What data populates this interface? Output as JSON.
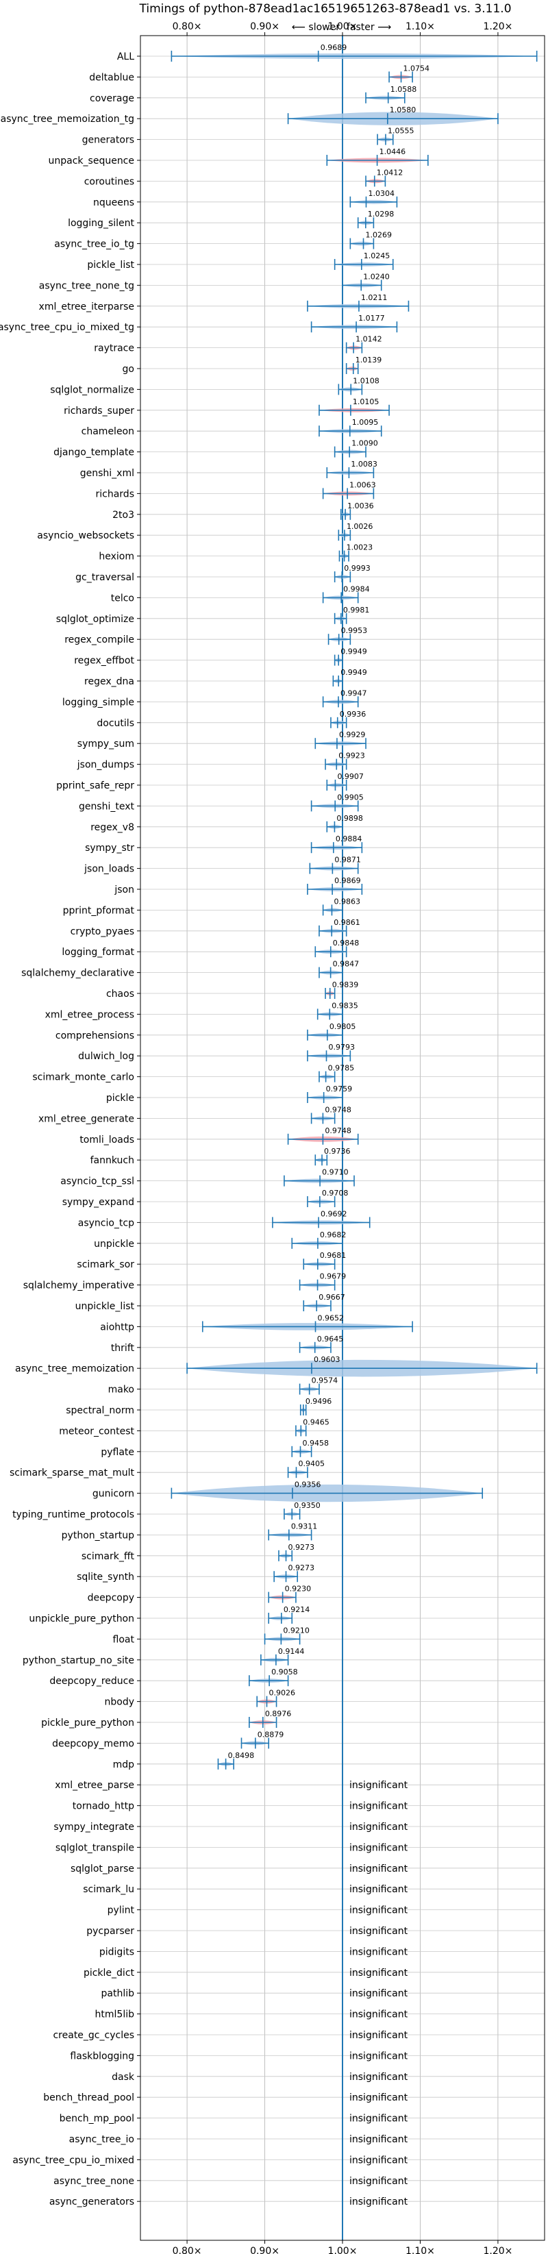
{
  "chart_data": {
    "type": "violin",
    "title": "Timings of python-878ead1ac16519651263-878ead1 vs. 3.11.0",
    "xlabel": "",
    "ylabel": "",
    "xlim": [
      0.74,
      1.26
    ],
    "xticks": [
      0.8,
      0.9,
      1.0,
      1.1,
      1.2
    ],
    "xtick_labels": [
      "0.80×",
      "0.90×",
      "1.00×",
      "1.10×",
      "1.20×"
    ],
    "reference_x": 1.0,
    "direction_labels": {
      "slower": "⟵ slower",
      "faster": "faster ⟶"
    },
    "grid": true,
    "insignificant_label": "insignificant",
    "benchmarks": [
      {
        "name": "ALL",
        "value": 0.9689,
        "label": "0.9689",
        "min": 0.78,
        "max": 1.25,
        "width": 0.045,
        "color": "blue"
      },
      {
        "name": "deltablue",
        "value": 1.0754,
        "label": "1.0754",
        "min": 1.06,
        "max": 1.09,
        "width": 0.015,
        "color": "red"
      },
      {
        "name": "coverage",
        "value": 1.0588,
        "label": "1.0588",
        "min": 1.03,
        "max": 1.08,
        "width": 0.018,
        "color": "blue"
      },
      {
        "name": "async_tree_memoization_tg",
        "value": 1.058,
        "label": "1.0580",
        "min": 0.93,
        "max": 1.2,
        "width": 0.11,
        "color": "blue"
      },
      {
        "name": "generators",
        "value": 1.0555,
        "label": "1.0555",
        "min": 1.045,
        "max": 1.065,
        "width": 0.01,
        "color": "blue"
      },
      {
        "name": "unpack_sequence",
        "value": 1.0446,
        "label": "1.0446",
        "min": 0.98,
        "max": 1.11,
        "width": 0.04,
        "color": "red"
      },
      {
        "name": "coroutines",
        "value": 1.0412,
        "label": "1.0412",
        "min": 1.03,
        "max": 1.055,
        "width": 0.012,
        "color": "red"
      },
      {
        "name": "nqueens",
        "value": 1.0304,
        "label": "1.0304",
        "min": 1.01,
        "max": 1.07,
        "width": 0.02,
        "color": "blue"
      },
      {
        "name": "logging_silent",
        "value": 1.0298,
        "label": "1.0298",
        "min": 1.02,
        "max": 1.04,
        "width": 0.008,
        "color": "blue"
      },
      {
        "name": "async_tree_io_tg",
        "value": 1.0269,
        "label": "1.0269",
        "min": 1.01,
        "max": 1.04,
        "width": 0.015,
        "color": "blue"
      },
      {
        "name": "pickle_list",
        "value": 1.0245,
        "label": "1.0245",
        "min": 0.99,
        "max": 1.065,
        "width": 0.02,
        "color": "blue"
      },
      {
        "name": "async_tree_none_tg",
        "value": 1.024,
        "label": "1.0240",
        "min": 1.0,
        "max": 1.05,
        "width": 0.025,
        "color": "blue"
      },
      {
        "name": "xml_etree_iterparse",
        "value": 1.0211,
        "label": "1.0211",
        "min": 0.955,
        "max": 1.085,
        "width": 0.035,
        "color": "blue"
      },
      {
        "name": "async_tree_cpu_io_mixed_tg",
        "value": 1.0177,
        "label": "1.0177",
        "min": 0.96,
        "max": 1.07,
        "width": 0.03,
        "color": "blue"
      },
      {
        "name": "raytrace",
        "value": 1.0142,
        "label": "1.0142",
        "min": 1.005,
        "max": 1.025,
        "width": 0.008,
        "color": "red"
      },
      {
        "name": "go",
        "value": 1.0139,
        "label": "1.0139",
        "min": 1.005,
        "max": 1.02,
        "width": 0.008,
        "color": "red"
      },
      {
        "name": "sqlglot_normalize",
        "value": 1.0108,
        "label": "1.0108",
        "min": 0.995,
        "max": 1.025,
        "width": 0.01,
        "color": "blue"
      },
      {
        "name": "richards_super",
        "value": 1.0105,
        "label": "1.0105",
        "min": 0.97,
        "max": 1.06,
        "width": 0.03,
        "color": "red"
      },
      {
        "name": "chameleon",
        "value": 1.0095,
        "label": "1.0095",
        "min": 0.97,
        "max": 1.05,
        "width": 0.02,
        "color": "blue"
      },
      {
        "name": "django_template",
        "value": 1.009,
        "label": "1.0090",
        "min": 0.99,
        "max": 1.03,
        "width": 0.012,
        "color": "blue"
      },
      {
        "name": "genshi_xml",
        "value": 1.0083,
        "label": "1.0083",
        "min": 0.98,
        "max": 1.04,
        "width": 0.015,
        "color": "blue"
      },
      {
        "name": "richards",
        "value": 1.0063,
        "label": "1.0063",
        "min": 0.975,
        "max": 1.04,
        "width": 0.03,
        "color": "red"
      },
      {
        "name": "2to3",
        "value": 1.0036,
        "label": "1.0036",
        "min": 0.998,
        "max": 1.01,
        "width": 0.006,
        "color": "blue"
      },
      {
        "name": "asyncio_websockets",
        "value": 1.0026,
        "label": "1.0026",
        "min": 0.995,
        "max": 1.01,
        "width": 0.006,
        "color": "blue"
      },
      {
        "name": "hexiom",
        "value": 1.0023,
        "label": "1.0023",
        "min": 0.996,
        "max": 1.008,
        "width": 0.005,
        "color": "blue"
      },
      {
        "name": "gc_traversal",
        "value": 0.9993,
        "label": "0.9993",
        "min": 0.99,
        "max": 1.01,
        "width": 0.006,
        "color": "blue"
      },
      {
        "name": "telco",
        "value": 0.9984,
        "label": "0.9984",
        "min": 0.975,
        "max": 1.02,
        "width": 0.012,
        "color": "blue"
      },
      {
        "name": "sqlglot_optimize",
        "value": 0.9981,
        "label": "0.9981",
        "min": 0.99,
        "max": 1.005,
        "width": 0.006,
        "color": "blue"
      },
      {
        "name": "regex_compile",
        "value": 0.9953,
        "label": "0.9953",
        "min": 0.982,
        "max": 1.01,
        "width": 0.008,
        "color": "blue"
      },
      {
        "name": "regex_effbot",
        "value": 0.9949,
        "label": "0.9949",
        "min": 0.99,
        "max": 1.0,
        "width": 0.005,
        "color": "blue"
      },
      {
        "name": "regex_dna",
        "value": 0.9949,
        "label": "0.9949",
        "min": 0.988,
        "max": 1.0,
        "width": 0.005,
        "color": "blue"
      },
      {
        "name": "logging_simple",
        "value": 0.9947,
        "label": "0.9947",
        "min": 0.975,
        "max": 1.02,
        "width": 0.015,
        "color": "blue"
      },
      {
        "name": "docutils",
        "value": 0.9936,
        "label": "0.9936",
        "min": 0.985,
        "max": 1.005,
        "width": 0.006,
        "color": "blue"
      },
      {
        "name": "sympy_sum",
        "value": 0.9929,
        "label": "0.9929",
        "min": 0.965,
        "max": 1.03,
        "width": 0.02,
        "color": "blue"
      },
      {
        "name": "json_dumps",
        "value": 0.9923,
        "label": "0.9923",
        "min": 0.978,
        "max": 1.005,
        "width": 0.008,
        "color": "blue"
      },
      {
        "name": "pprint_safe_repr",
        "value": 0.9907,
        "label": "0.9907",
        "min": 0.98,
        "max": 1.005,
        "width": 0.006,
        "color": "blue"
      },
      {
        "name": "genshi_text",
        "value": 0.9905,
        "label": "0.9905",
        "min": 0.96,
        "max": 1.02,
        "width": 0.02,
        "color": "blue"
      },
      {
        "name": "regex_v8",
        "value": 0.9898,
        "label": "0.9898",
        "min": 0.98,
        "max": 1.0,
        "width": 0.005,
        "color": "blue"
      },
      {
        "name": "sympy_str",
        "value": 0.9884,
        "label": "0.9884",
        "min": 0.96,
        "max": 1.025,
        "width": 0.02,
        "color": "blue"
      },
      {
        "name": "json_loads",
        "value": 0.9871,
        "label": "0.9871",
        "min": 0.958,
        "max": 1.02,
        "width": 0.015,
        "color": "blue"
      },
      {
        "name": "json",
        "value": 0.9869,
        "label": "0.9869",
        "min": 0.955,
        "max": 1.025,
        "width": 0.02,
        "color": "blue"
      },
      {
        "name": "pprint_pformat",
        "value": 0.9863,
        "label": "0.9863",
        "min": 0.975,
        "max": 1.0,
        "width": 0.006,
        "color": "blue"
      },
      {
        "name": "crypto_pyaes",
        "value": 0.9861,
        "label": "0.9861",
        "min": 0.97,
        "max": 1.005,
        "width": 0.008,
        "color": "blue"
      },
      {
        "name": "logging_format",
        "value": 0.9848,
        "label": "0.9848",
        "min": 0.965,
        "max": 1.005,
        "width": 0.012,
        "color": "blue"
      },
      {
        "name": "sqlalchemy_declarative",
        "value": 0.9847,
        "label": "0.9847",
        "min": 0.97,
        "max": 1.0,
        "width": 0.008,
        "color": "blue"
      },
      {
        "name": "chaos",
        "value": 0.9839,
        "label": "0.9839",
        "min": 0.978,
        "max": 0.99,
        "width": 0.006,
        "color": "red"
      },
      {
        "name": "xml_etree_process",
        "value": 0.9835,
        "label": "0.9835",
        "min": 0.968,
        "max": 1.0,
        "width": 0.008,
        "color": "blue"
      },
      {
        "name": "comprehensions",
        "value": 0.9805,
        "label": "0.9805",
        "min": 0.955,
        "max": 1.0,
        "width": 0.012,
        "color": "blue"
      },
      {
        "name": "dulwich_log",
        "value": 0.9793,
        "label": "0.9793",
        "min": 0.955,
        "max": 1.01,
        "width": 0.015,
        "color": "blue"
      },
      {
        "name": "scimark_monte_carlo",
        "value": 0.9785,
        "label": "0.9785",
        "min": 0.97,
        "max": 0.99,
        "width": 0.006,
        "color": "blue"
      },
      {
        "name": "pickle",
        "value": 0.9759,
        "label": "0.9759",
        "min": 0.955,
        "max": 1.0,
        "width": 0.012,
        "color": "blue"
      },
      {
        "name": "xml_etree_generate",
        "value": 0.9748,
        "label": "0.9748",
        "min": 0.96,
        "max": 0.99,
        "width": 0.008,
        "color": "blue"
      },
      {
        "name": "tomli_loads",
        "value": 0.9748,
        "label": "0.9748",
        "min": 0.93,
        "max": 1.02,
        "width": 0.045,
        "color": "red"
      },
      {
        "name": "fannkuch",
        "value": 0.9736,
        "label": "0.9736",
        "min": 0.965,
        "max": 0.98,
        "width": 0.005,
        "color": "blue"
      },
      {
        "name": "asyncio_tcp_ssl",
        "value": 0.971,
        "label": "0.9710",
        "min": 0.925,
        "max": 1.015,
        "width": 0.035,
        "color": "blue"
      },
      {
        "name": "sympy_expand",
        "value": 0.9708,
        "label": "0.9708",
        "min": 0.955,
        "max": 0.99,
        "width": 0.01,
        "color": "blue"
      },
      {
        "name": "asyncio_tcp",
        "value": 0.9692,
        "label": "0.9692",
        "min": 0.91,
        "max": 1.035,
        "width": 0.035,
        "color": "blue"
      },
      {
        "name": "unpickle",
        "value": 0.9682,
        "label": "0.9682",
        "min": 0.935,
        "max": 1.0,
        "width": 0.015,
        "color": "blue"
      },
      {
        "name": "scimark_sor",
        "value": 0.9681,
        "label": "0.9681",
        "min": 0.95,
        "max": 0.99,
        "width": 0.01,
        "color": "blue"
      },
      {
        "name": "sqlalchemy_imperative",
        "value": 0.9679,
        "label": "0.9679",
        "min": 0.945,
        "max": 0.99,
        "width": 0.012,
        "color": "blue"
      },
      {
        "name": "unpickle_list",
        "value": 0.9667,
        "label": "0.9667",
        "min": 0.95,
        "max": 0.985,
        "width": 0.01,
        "color": "blue"
      },
      {
        "name": "aiohttp",
        "value": 0.9652,
        "label": "0.9652",
        "min": 0.82,
        "max": 1.09,
        "width": 0.06,
        "color": "blue"
      },
      {
        "name": "thrift",
        "value": 0.9645,
        "label": "0.9645",
        "min": 0.945,
        "max": 0.985,
        "width": 0.012,
        "color": "blue"
      },
      {
        "name": "async_tree_memoization",
        "value": 0.9603,
        "label": "0.9603",
        "min": 0.8,
        "max": 1.25,
        "width": 0.14,
        "color": "blue"
      },
      {
        "name": "mako",
        "value": 0.9574,
        "label": "0.9574",
        "min": 0.945,
        "max": 0.97,
        "width": 0.008,
        "color": "blue"
      },
      {
        "name": "spectral_norm",
        "value": 0.9496,
        "label": "0.9496",
        "min": 0.946,
        "max": 0.953,
        "width": 0.004,
        "color": "blue"
      },
      {
        "name": "meteor_contest",
        "value": 0.9465,
        "label": "0.9465",
        "min": 0.94,
        "max": 0.953,
        "width": 0.005,
        "color": "blue"
      },
      {
        "name": "pyflate",
        "value": 0.9458,
        "label": "0.9458",
        "min": 0.935,
        "max": 0.96,
        "width": 0.008,
        "color": "blue"
      },
      {
        "name": "scimark_sparse_mat_mult",
        "value": 0.9405,
        "label": "0.9405",
        "min": 0.93,
        "max": 0.955,
        "width": 0.008,
        "color": "blue"
      },
      {
        "name": "gunicorn",
        "value": 0.9356,
        "label": "0.9356",
        "min": 0.78,
        "max": 1.18,
        "width": 0.16,
        "color": "blue"
      },
      {
        "name": "typing_runtime_protocols",
        "value": 0.935,
        "label": "0.9350",
        "min": 0.925,
        "max": 0.945,
        "width": 0.006,
        "color": "blue"
      },
      {
        "name": "python_startup",
        "value": 0.9311,
        "label": "0.9311",
        "min": 0.905,
        "max": 0.96,
        "width": 0.015,
        "color": "blue"
      },
      {
        "name": "scimark_fft",
        "value": 0.9273,
        "label": "0.9273",
        "min": 0.918,
        "max": 0.935,
        "width": 0.006,
        "color": "blue"
      },
      {
        "name": "sqlite_synth",
        "value": 0.9273,
        "label": "0.9273",
        "min": 0.912,
        "max": 0.942,
        "width": 0.008,
        "color": "blue"
      },
      {
        "name": "deepcopy",
        "value": 0.923,
        "label": "0.9230",
        "min": 0.905,
        "max": 0.94,
        "width": 0.02,
        "color": "red"
      },
      {
        "name": "unpickle_pure_python",
        "value": 0.9214,
        "label": "0.9214",
        "min": 0.905,
        "max": 0.935,
        "width": 0.01,
        "color": "blue"
      },
      {
        "name": "float",
        "value": 0.921,
        "label": "0.9210",
        "min": 0.9,
        "max": 0.945,
        "width": 0.015,
        "color": "blue"
      },
      {
        "name": "python_startup_no_site",
        "value": 0.9144,
        "label": "0.9144",
        "min": 0.895,
        "max": 0.93,
        "width": 0.01,
        "color": "blue"
      },
      {
        "name": "deepcopy_reduce",
        "value": 0.9058,
        "label": "0.9058",
        "min": 0.88,
        "max": 0.93,
        "width": 0.015,
        "color": "blue"
      },
      {
        "name": "nbody",
        "value": 0.9026,
        "label": "0.9026",
        "min": 0.89,
        "max": 0.915,
        "width": 0.008,
        "color": "red"
      },
      {
        "name": "pickle_pure_python",
        "value": 0.8976,
        "label": "0.8976",
        "min": 0.88,
        "max": 0.915,
        "width": 0.015,
        "color": "red"
      },
      {
        "name": "deepcopy_memo",
        "value": 0.8879,
        "label": "0.8879",
        "min": 0.87,
        "max": 0.905,
        "width": 0.015,
        "color": "blue"
      },
      {
        "name": "mdp",
        "value": 0.8498,
        "label": "0.8498",
        "min": 0.84,
        "max": 0.86,
        "width": 0.006,
        "color": "blue"
      },
      {
        "name": "xml_etree_parse",
        "insignificant": true
      },
      {
        "name": "tornado_http",
        "insignificant": true
      },
      {
        "name": "sympy_integrate",
        "insignificant": true
      },
      {
        "name": "sqlglot_transpile",
        "insignificant": true
      },
      {
        "name": "sqlglot_parse",
        "insignificant": true
      },
      {
        "name": "scimark_lu",
        "insignificant": true
      },
      {
        "name": "pylint",
        "insignificant": true
      },
      {
        "name": "pycparser",
        "insignificant": true
      },
      {
        "name": "pidigits",
        "insignificant": true
      },
      {
        "name": "pickle_dict",
        "insignificant": true
      },
      {
        "name": "pathlib",
        "insignificant": true
      },
      {
        "name": "html5lib",
        "insignificant": true
      },
      {
        "name": "create_gc_cycles",
        "insignificant": true
      },
      {
        "name": "flaskblogging",
        "insignificant": true
      },
      {
        "name": "dask",
        "insignificant": true
      },
      {
        "name": "bench_thread_pool",
        "insignificant": true
      },
      {
        "name": "bench_mp_pool",
        "insignificant": true
      },
      {
        "name": "async_tree_io",
        "insignificant": true
      },
      {
        "name": "async_tree_cpu_io_mixed",
        "insignificant": true
      },
      {
        "name": "async_tree_none",
        "insignificant": true
      },
      {
        "name": "async_generators",
        "insignificant": true
      }
    ]
  }
}
